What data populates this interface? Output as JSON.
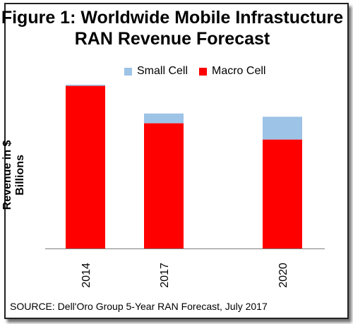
{
  "title_lines": [
    "Figure 1: Worldwide Mobile Infrastucture",
    "RAN Revenue Forecast"
  ],
  "source": "SOURCE:   Dell'Oro Group 5-Year RAN Forecast, July 2017",
  "chart_data": {
    "type": "bar",
    "stacked": true,
    "categories": [
      "2014",
      "2017",
      "2020"
    ],
    "series": [
      {
        "name": "Macro Cell",
        "color": "#ff0000",
        "values": [
          100,
          77,
          67
        ]
      },
      {
        "name": "Small Cell",
        "color": "#9dc3e6",
        "values": [
          0.7,
          6,
          14
        ]
      }
    ],
    "ylabel": "Revenue in $ Billions",
    "xlabel": "",
    "ylim": [
      0,
      100.7
    ],
    "y_ticks_shown": false,
    "x_tick_rotation": -90,
    "grid": false,
    "legend_position": "top"
  }
}
